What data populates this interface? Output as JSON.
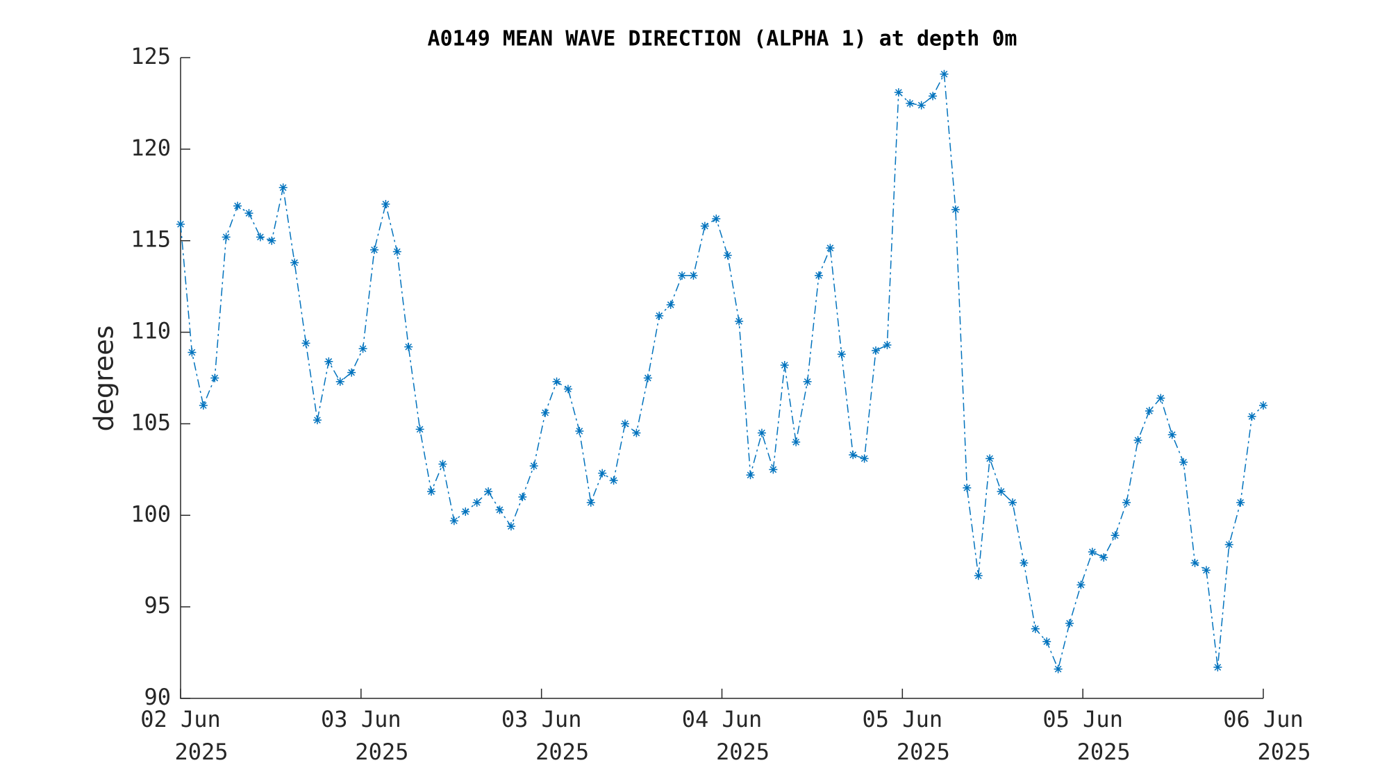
{
  "chart_data": {
    "type": "line",
    "title": "A0149 MEAN WAVE DIRECTION (ALPHA 1) at depth 0m",
    "y_label": "degrees",
    "color": "#0072bd",
    "line_style": "dash-dot",
    "marker": "asterisk",
    "values": [
      115.9,
      108.9,
      106.0,
      107.5,
      115.2,
      116.9,
      116.5,
      115.2,
      115.0,
      117.9,
      113.8,
      109.4,
      105.2,
      108.4,
      107.3,
      107.8,
      109.1,
      114.5,
      117.0,
      114.4,
      109.2,
      104.7,
      101.3,
      102.8,
      99.7,
      100.2,
      100.7,
      101.3,
      100.3,
      99.4,
      101.0,
      102.7,
      105.6,
      107.3,
      106.9,
      104.6,
      100.7,
      102.3,
      101.9,
      105.0,
      104.5,
      107.5,
      110.9,
      111.5,
      113.1,
      113.1,
      115.8,
      116.2,
      114.2,
      110.6,
      102.2,
      104.5,
      102.5,
      108.2,
      104.0,
      107.3,
      113.1,
      114.6,
      108.8,
      103.3,
      103.1,
      109.0,
      109.3,
      123.1,
      122.5,
      122.4,
      122.9,
      124.1,
      116.7,
      101.5,
      96.7,
      103.1,
      101.3,
      100.7,
      97.4,
      93.8,
      93.1,
      91.6,
      94.1,
      96.2,
      98.0,
      97.7,
      98.9,
      100.7,
      104.1,
      105.7,
      106.4,
      104.4,
      102.9,
      97.4,
      97.0,
      91.7,
      98.4,
      100.7,
      105.4,
      106.0
    ],
    "xlim": [
      0,
      95
    ],
    "xticks": [
      {
        "value": 0,
        "label": [
          "02 Jun",
          "2025"
        ]
      },
      {
        "value": 15.8333,
        "label": [
          "03 Jun",
          "2025"
        ]
      },
      {
        "value": 31.6667,
        "label": [
          "03 Jun",
          "2025"
        ]
      },
      {
        "value": 47.5,
        "label": [
          "04 Jun",
          "2025"
        ]
      },
      {
        "value": 63.3333,
        "label": [
          "05 Jun",
          "2025"
        ]
      },
      {
        "value": 79.1667,
        "label": [
          "05 Jun",
          "2025"
        ]
      },
      {
        "value": 95,
        "label": [
          "06 Jun",
          "2025"
        ]
      }
    ],
    "ylim": [
      90,
      125
    ],
    "yticks": [
      90,
      95,
      100,
      105,
      110,
      115,
      120,
      125
    ],
    "grid": false
  }
}
